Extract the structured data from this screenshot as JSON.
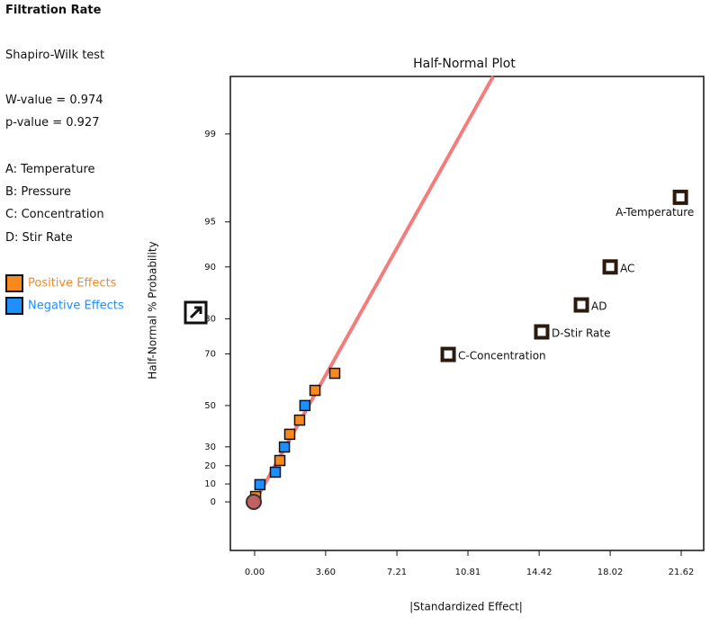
{
  "panel": {
    "title": "Filtration Rate",
    "test": "Shapiro-Wilk test",
    "w_value": "W-value = 0.974",
    "p_value": "p-value = 0.927",
    "factors": [
      "A: Temperature",
      "B: Pressure",
      "C: Concentration",
      "D: Stir Rate"
    ]
  },
  "chart_data": {
    "type": "half-normal",
    "title": "Half-Normal Plot",
    "x_label": "|Standardized Effect|",
    "y_label": "Half-Normal % Probability",
    "y_scale": "half-normal",
    "xlim": [
      -1.23,
      22.76
    ],
    "xticks": [
      {
        "value": 0,
        "label": "0.00"
      },
      {
        "value": 3.6,
        "label": "3.60"
      },
      {
        "value": 7.21,
        "label": "7.21"
      },
      {
        "value": 10.81,
        "label": "10.81"
      },
      {
        "value": 14.42,
        "label": "14.42"
      },
      {
        "value": 18.02,
        "label": "18.02"
      },
      {
        "value": 21.62,
        "label": "21.62"
      }
    ],
    "ylim": [
      -26.6,
      99.71
    ],
    "yticks": [
      0,
      10,
      20,
      30,
      50,
      70,
      80,
      90,
      95,
      99
    ],
    "series": [
      {
        "name": "Positive Effects",
        "color": "#f7891f",
        "x": [
          0.05,
          1.28,
          1.78,
          2.28,
          3.06,
          4.06
        ],
        "values": [
          3.0,
          22.8,
          36.4,
          43.3,
          56.5,
          63.2
        ]
      },
      {
        "name": "Negative Effects",
        "color": "#1e8fff",
        "x": [
          0.27,
          1.05,
          1.51,
          2.55
        ],
        "values": [
          9.6,
          16.5,
          29.9,
          50.0
        ]
      }
    ],
    "labeled_points": {
      "color": "#2b1a0e",
      "labels": [
        "A-Temperature",
        "AC",
        "AD",
        "D-Stir Rate",
        "C-Concentration"
      ],
      "x": [
        21.58,
        18.02,
        16.56,
        14.55,
        9.81
      ],
      "values": [
        96.7,
        90.0,
        83.2,
        76.6,
        69.8
      ]
    },
    "fit_line": {
      "color": "#f47c7c",
      "x": [
        0,
        12.09
      ],
      "values": [
        0,
        99.71
      ]
    }
  }
}
